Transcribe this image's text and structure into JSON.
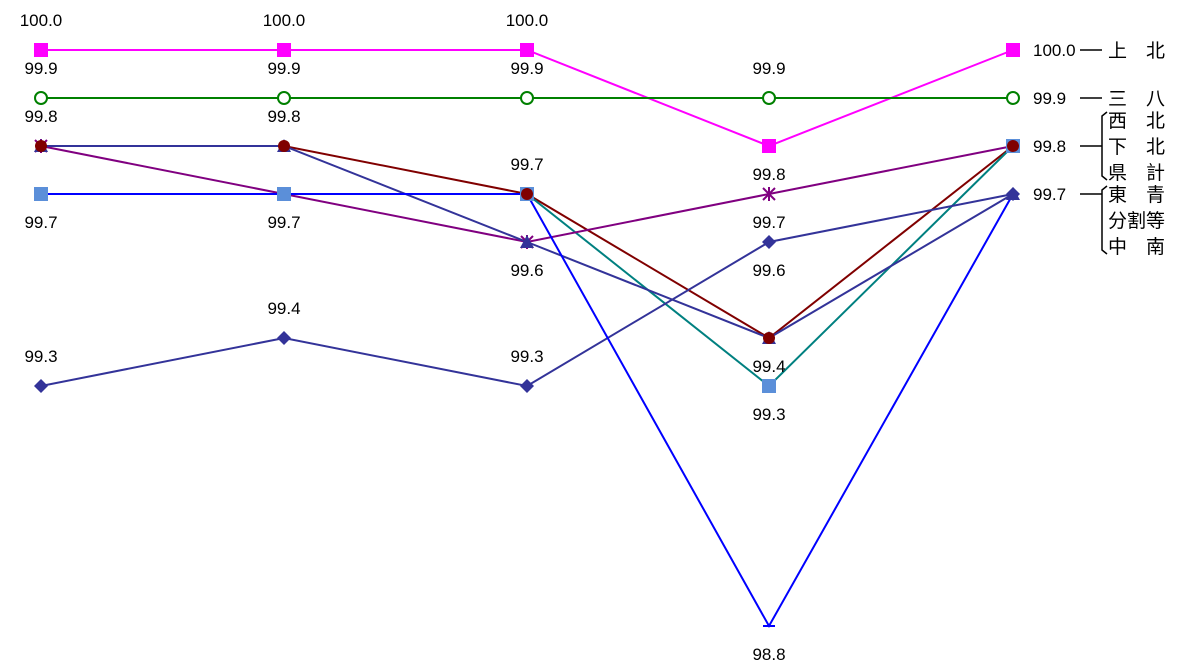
{
  "chart_data": {
    "type": "line",
    "x": [
      "",
      "",
      "",
      "",
      ""
    ],
    "ylim": [
      98.8,
      100.0
    ],
    "grid": false,
    "legend": "right",
    "series": [
      {
        "name": "上　北",
        "values": [
          100.0,
          100.0,
          100.0,
          99.8,
          100.0
        ],
        "color": "#ff00ff",
        "marker": "square"
      },
      {
        "name": "三　八",
        "values": [
          99.9,
          99.9,
          99.9,
          99.9,
          99.9
        ],
        "color": "#008000",
        "marker": "open-circle"
      },
      {
        "name": "西　北",
        "values": [
          99.8,
          99.8,
          99.7,
          99.4,
          99.8
        ],
        "color": "#800000",
        "marker": "circle"
      },
      {
        "name": "下　北",
        "values": [
          99.7,
          99.7,
          99.7,
          99.3,
          99.8
        ],
        "color": "#008080",
        "marker": "square-light"
      },
      {
        "name": "県　計",
        "values": [
          99.8,
          99.7,
          99.6,
          99.7,
          99.8
        ],
        "color": "#800080",
        "marker": "star"
      },
      {
        "name": "東　青",
        "values": [
          99.8,
          99.8,
          99.6,
          99.4,
          99.7
        ],
        "color": "#333399",
        "marker": "triangle"
      },
      {
        "name": "分割等",
        "values": [
          99.3,
          99.4,
          99.3,
          99.6,
          99.7
        ],
        "color": "#333399",
        "marker": "diamond"
      },
      {
        "name": "中　南",
        "values": [
          99.7,
          99.7,
          99.7,
          98.8,
          99.7
        ],
        "color": "#0000ff",
        "marker": "dash"
      }
    ],
    "data_labels": [
      {
        "text": "100.0",
        "col": 0,
        "value": 100.0,
        "pos": "above"
      },
      {
        "text": "100.0",
        "col": 1,
        "value": 100.0,
        "pos": "above"
      },
      {
        "text": "100.0",
        "col": 2,
        "value": 100.0,
        "pos": "above"
      },
      {
        "text": "99.9",
        "col": 0,
        "value": 99.9,
        "pos": "above"
      },
      {
        "text": "99.9",
        "col": 1,
        "value": 99.9,
        "pos": "above"
      },
      {
        "text": "99.9",
        "col": 2,
        "value": 99.9,
        "pos": "above"
      },
      {
        "text": "99.9",
        "col": 3,
        "value": 99.9,
        "pos": "above"
      },
      {
        "text": "99.8",
        "col": 0,
        "value": 99.8,
        "pos": "above"
      },
      {
        "text": "99.8",
        "col": 1,
        "value": 99.8,
        "pos": "above"
      },
      {
        "text": "99.7",
        "col": 0,
        "value": 99.7,
        "pos": "below"
      },
      {
        "text": "99.7",
        "col": 1,
        "value": 99.7,
        "pos": "below"
      },
      {
        "text": "99.7",
        "col": 2,
        "value": 99.7,
        "pos": "above"
      },
      {
        "text": "99.8",
        "col": 3,
        "value": 99.8,
        "pos": "below"
      },
      {
        "text": "99.7",
        "col": 3,
        "value": 99.7,
        "pos": "below"
      },
      {
        "text": "99.6",
        "col": 2,
        "value": 99.6,
        "pos": "below"
      },
      {
        "text": "99.6",
        "col": 3,
        "value": 99.6,
        "pos": "below"
      },
      {
        "text": "99.4",
        "col": 1,
        "value": 99.4,
        "pos": "above"
      },
      {
        "text": "99.3",
        "col": 0,
        "value": 99.3,
        "pos": "above"
      },
      {
        "text": "99.3",
        "col": 2,
        "value": 99.3,
        "pos": "above"
      },
      {
        "text": "99.4",
        "col": 3,
        "value": 99.4,
        "pos": "below"
      },
      {
        "text": "99.3",
        "col": 3,
        "value": 99.3,
        "pos": "below"
      },
      {
        "text": "98.8",
        "col": 3,
        "value": 98.8,
        "pos": "below"
      }
    ],
    "end_labels": [
      {
        "text": "100.0",
        "value": 100.0
      },
      {
        "text": "99.9",
        "value": 99.9
      },
      {
        "text": "99.8",
        "value": 99.8
      },
      {
        "text": "99.7",
        "value": 99.7
      }
    ],
    "category_labels": [
      {
        "text": "上　北",
        "value": 100.0
      },
      {
        "text": "三　八",
        "value": 99.9
      },
      {
        "text": "西　北",
        "value": 99.8,
        "offset": -1
      },
      {
        "text": "下　北",
        "value": 99.8,
        "offset": 0
      },
      {
        "text": "県　計",
        "value": 99.8,
        "offset": 1
      },
      {
        "text": "東　青",
        "value": 99.7,
        "offset": 0
      },
      {
        "text": "分割等",
        "value": 99.7,
        "offset": 1
      },
      {
        "text": "中　南",
        "value": 99.7,
        "offset": 2
      }
    ],
    "brackets": [
      {
        "from": 99.8,
        "to_offset": [
          -1,
          1
        ],
        "value": 99.8
      },
      {
        "from": 99.7,
        "to_offset": [
          0,
          2
        ],
        "value": 99.7
      }
    ]
  }
}
